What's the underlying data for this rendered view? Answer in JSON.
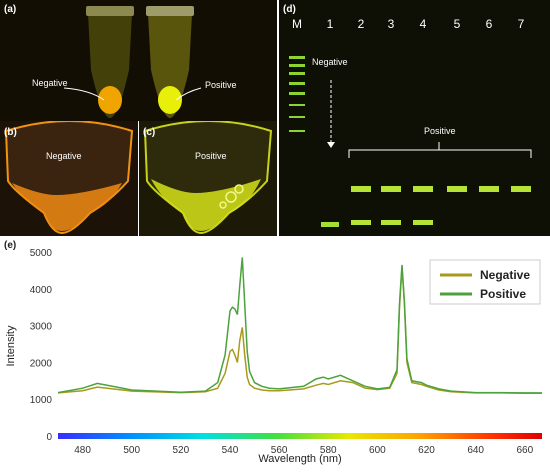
{
  "panels": {
    "a": {
      "label": "(a)",
      "negative": "Negative",
      "positive": "Positive"
    },
    "b": {
      "label": "(b)",
      "text": "Negative"
    },
    "c": {
      "label": "(c)",
      "text": "Positive"
    },
    "d": {
      "label": "(d)",
      "lanes": [
        "M",
        "1",
        "2",
        "3",
        "4",
        "5",
        "6",
        "7"
      ],
      "negative": "Negative",
      "positive": "Positive"
    },
    "e": {
      "label": "(e)"
    }
  },
  "colors": {
    "negative": "#a89a1c",
    "positive": "#4ca23c"
  },
  "chart_data": {
    "type": "line",
    "xlabel": "Wavelength (nm)",
    "ylabel": "Intensity",
    "xlim": [
      470,
      667
    ],
    "ylim": [
      0,
      5000
    ],
    "xticks": [
      "480",
      "500",
      "520",
      "540",
      "560",
      "580",
      "600",
      "620",
      "640",
      "660"
    ],
    "yticks": [
      "0",
      "1000",
      "2000",
      "3000",
      "4000",
      "5000"
    ],
    "series": [
      {
        "name": "Negative",
        "color": "#a89a1c",
        "x": [
          470,
          480,
          486,
          490,
          500,
          520,
          530,
          535,
          538,
          540,
          541,
          542,
          543,
          544,
          545,
          546,
          547,
          548,
          550,
          553,
          556,
          560,
          570,
          575,
          578,
          580,
          585,
          590,
          595,
          600,
          605,
          608,
          609,
          610,
          611,
          612,
          614,
          618,
          620,
          625,
          630,
          640,
          650,
          660,
          667
        ],
        "y": [
          1170,
          1230,
          1330,
          1300,
          1220,
          1180,
          1200,
          1300,
          1700,
          2300,
          2350,
          2200,
          2000,
          2600,
          2950,
          2200,
          1600,
          1400,
          1300,
          1250,
          1230,
          1230,
          1280,
          1380,
          1430,
          1400,
          1500,
          1450,
          1300,
          1260,
          1300,
          1700,
          3500,
          4600,
          3600,
          2000,
          1450,
          1400,
          1350,
          1250,
          1200,
          1170,
          1170,
          1160,
          1160
        ]
      },
      {
        "name": "Positive",
        "color": "#4ca23c",
        "x": [
          470,
          480,
          486,
          490,
          500,
          520,
          530,
          535,
          538,
          540,
          541,
          542,
          543,
          544,
          545,
          546,
          547,
          548,
          550,
          553,
          556,
          560,
          570,
          575,
          578,
          580,
          585,
          590,
          595,
          600,
          605,
          608,
          609,
          610,
          611,
          612,
          614,
          618,
          620,
          625,
          630,
          640,
          650,
          660,
          667
        ],
        "y": [
          1180,
          1300,
          1430,
          1380,
          1250,
          1190,
          1220,
          1450,
          2200,
          3400,
          3500,
          3450,
          3300,
          4100,
          4850,
          3600,
          2300,
          1750,
          1450,
          1350,
          1300,
          1280,
          1350,
          1550,
          1600,
          1550,
          1650,
          1500,
          1350,
          1280,
          1320,
          1800,
          3600,
          4650,
          3650,
          2100,
          1500,
          1450,
          1380,
          1280,
          1220,
          1180,
          1180,
          1170,
          1170
        ]
      }
    ]
  }
}
